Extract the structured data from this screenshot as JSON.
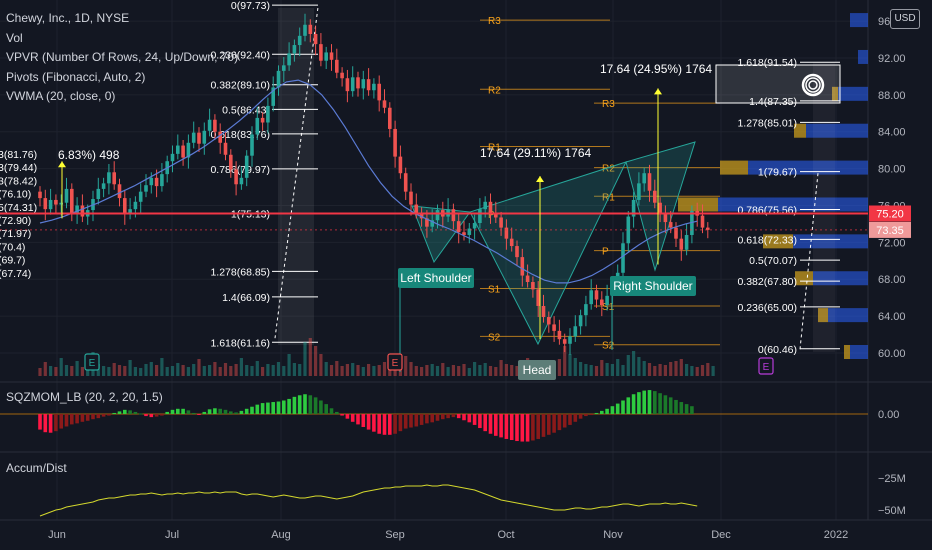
{
  "chart_data": {
    "type": "candlestick",
    "symbol": "Chewy, Inc., 1D, NYSE",
    "indicators": [
      "Vol",
      "VPVR (Number Of Rows, 24, Up/Down, 70)",
      "Pivots (Fibonacci, Auto, 2)",
      "VWMA (20, close, 0)"
    ],
    "currency_label": "USD",
    "x_ticks": [
      "Jun",
      "Jul",
      "Aug",
      "Sep",
      "Oct",
      "Nov",
      "Dec",
      "2022"
    ],
    "y_ticks": [
      "96.00",
      "92.00",
      "88.00",
      "84.00",
      "80.00",
      "76.00",
      "72.00",
      "68.00",
      "64.00",
      "60.00"
    ],
    "ylim": [
      59,
      97.5
    ],
    "last_price": "75.20",
    "second_price": "73.35",
    "price_path": [
      77.5,
      76.8,
      75.6,
      76.6,
      76.1,
      76.3,
      77.8,
      75.2,
      76.0,
      74.8,
      75.5,
      76.7,
      77.8,
      78.4,
      79.6,
      78.3,
      76.8,
      75.1,
      75.6,
      76.4,
      77.5,
      78.2,
      79.0,
      78.1,
      79.4,
      80.8,
      81.6,
      82.5,
      81.2,
      82.8,
      83.9,
      82.7,
      84.1,
      85.3,
      84.0,
      82.8,
      81.5,
      79.9,
      78.3,
      79.0,
      81.4,
      83.7,
      85.5,
      85.0,
      86.8,
      88.8,
      90.6,
      91.2,
      92.5,
      93.4,
      94.4,
      95.6,
      94.6,
      93.5,
      91.7,
      92.6,
      91.8,
      90.4,
      89.8,
      88.4,
      89.9,
      88.7,
      89.7,
      88.5,
      89.2,
      87.4,
      86.6,
      84.3,
      81.3,
      79.5,
      77.5,
      76.1,
      75.2,
      74.6,
      73.7,
      74.4,
      75.5,
      74.8,
      75.6,
      74.3,
      73.1,
      72.8,
      73.5,
      74.1,
      75.6,
      76.4,
      75.2,
      74.7,
      73.6,
      72.4,
      71.6,
      70.4,
      68.4,
      67.7,
      66.9,
      65.1,
      63.9,
      63.1,
      62.4,
      61.5,
      61.0,
      61.8,
      62.9,
      64.1,
      65.3,
      66.8,
      65.8,
      65.2,
      66.2,
      67.4,
      68.7,
      71.9,
      74.8,
      76.6,
      78.4,
      79.5,
      77.6,
      76.3,
      75.1,
      74.2,
      73.6,
      72.4,
      71.2,
      72.8,
      75.4,
      74.9,
      73.6,
      73.35
    ],
    "vwma_path": [
      74.1,
      74.4,
      74.8,
      75.3,
      75.8,
      76.3,
      76.9,
      77.5,
      78.1,
      78.8,
      79.5,
      80.2,
      80.9,
      81.6,
      82.4,
      83.3,
      84.2,
      85.2,
      86.3,
      87.5,
      88.6,
      89.4,
      89.6,
      89.1,
      88.0,
      86.4,
      84.5,
      82.4,
      80.3,
      78.5,
      77.0,
      75.9,
      75.1,
      74.5,
      73.9,
      73.4,
      72.8,
      72.2,
      71.5,
      70.8,
      70.0,
      69.2,
      68.5,
      67.9,
      67.6,
      67.6,
      67.9,
      68.4,
      69.1,
      69.9,
      70.8,
      71.7,
      72.5,
      73.1,
      73.6,
      74.0,
      74.3
    ],
    "vwma_end_day": 124,
    "volume_heights": [
      8,
      14,
      10,
      9,
      18,
      11,
      10,
      15,
      9,
      8,
      24,
      12,
      10,
      9,
      13,
      11,
      10,
      16,
      9,
      8,
      12,
      14,
      11,
      18,
      9,
      10,
      13,
      11,
      9,
      12,
      17,
      10,
      11,
      14,
      9,
      13,
      10,
      12,
      18,
      11,
      10,
      15,
      9,
      12,
      11,
      14,
      10,
      22,
      13,
      12,
      34,
      38,
      30,
      22,
      14,
      11,
      15,
      10,
      12,
      13,
      11,
      9,
      12,
      10,
      11,
      14,
      12,
      18,
      21,
      20,
      14,
      10,
      9,
      11,
      12,
      10,
      13,
      9,
      11,
      10,
      12,
      8,
      14,
      11,
      13,
      10,
      9,
      16,
      12,
      11,
      10,
      14,
      18,
      15,
      12,
      11,
      9,
      13,
      17,
      30,
      22,
      18,
      14,
      12,
      11,
      10,
      16,
      13,
      12,
      17,
      11,
      21,
      25,
      19,
      15,
      13,
      10,
      12,
      11,
      14,
      15,
      17,
      12,
      10,
      9,
      11,
      13,
      10
    ],
    "squeeze_values": [
      -3.0,
      -3.5,
      -3.6,
      -3.3,
      -2.8,
      -2.4,
      -2.0,
      -1.8,
      -1.5,
      -1.3,
      -1.0,
      -0.8,
      -0.5,
      -0.3,
      0.2,
      0.5,
      0.8,
      0.7,
      0.4,
      0.1,
      -0.4,
      -0.6,
      -0.5,
      -0.3,
      0.4,
      0.8,
      1.0,
      1.0,
      0.7,
      0.2,
      -0.1,
      0.4,
      0.9,
      1.1,
      1.0,
      0.8,
      0.5,
      0.3,
      0.6,
      1.0,
      1.4,
      1.8,
      2.1,
      2.2,
      2.3,
      2.4,
      2.6,
      2.9,
      3.3,
      3.6,
      3.8,
      3.6,
      3.2,
      2.6,
      1.9,
      1.1,
      0.4,
      -0.3,
      -0.9,
      -1.5,
      -2.0,
      -2.5,
      -3.0,
      -3.4,
      -3.8,
      -4.0,
      -4.0,
      -3.8,
      -3.3,
      -2.8,
      -2.6,
      -2.4,
      -2.1,
      -1.8,
      -1.6,
      -1.3,
      -1.0,
      -0.8,
      -0.6,
      -0.8,
      -1.2,
      -1.6,
      -2.1,
      -2.7,
      -3.3,
      -3.8,
      -4.2,
      -4.5,
      -4.8,
      -5.0,
      -5.2,
      -5.3,
      -5.3,
      -5.1,
      -4.8,
      -4.4,
      -4.0,
      -3.6,
      -3.1,
      -2.6,
      -2.1,
      -1.5,
      -0.9,
      -0.4,
      -0.2,
      0.2,
      0.6,
      1.0,
      1.5,
      2.0,
      2.6,
      3.2,
      3.8,
      4.2,
      4.5,
      4.6,
      4.4,
      4.0,
      3.6,
      3.2,
      2.7,
      2.3,
      1.9,
      1.5
    ],
    "squeeze_zero_label": "0.00",
    "ad_values": [
      64,
      62,
      60,
      58,
      57,
      55,
      54,
      53,
      52,
      51,
      50,
      48,
      47,
      46,
      46,
      45,
      44,
      43,
      43,
      42,
      42,
      41,
      42,
      43,
      42,
      42,
      41,
      42,
      41,
      41,
      40,
      41,
      41,
      40,
      41,
      40,
      40,
      40,
      42,
      43,
      42,
      42,
      43,
      44,
      45,
      44,
      43,
      44,
      45,
      46,
      46,
      45,
      44,
      44,
      45,
      46,
      47,
      46,
      45,
      44,
      42,
      40,
      39,
      38,
      37,
      36,
      36,
      35,
      35,
      34,
      34,
      34,
      34,
      33,
      34,
      34,
      33,
      33,
      34,
      35,
      36,
      37,
      38,
      40,
      42,
      44,
      46,
      48,
      49,
      50,
      51,
      52,
      53,
      54,
      55,
      56,
      57,
      58,
      58,
      58,
      57,
      56,
      56,
      57,
      57,
      56,
      55,
      55,
      54,
      53,
      52,
      52,
      53,
      54,
      53,
      52,
      52,
      52,
      51,
      52,
      52,
      51,
      52,
      53,
      54
    ],
    "ad_ticks": [
      "−25M",
      "−50M"
    ],
    "fib_left": [
      {
        "label": "0(97.73)",
        "value": 97.73
      },
      {
        "label": "0.236(92.40)",
        "value": 92.4
      },
      {
        "label": "0.382(89.10)",
        "value": 89.1
      },
      {
        "label": "0.5(86.43)",
        "value": 86.43
      },
      {
        "label": "0.618(83.76)",
        "value": 83.76
      },
      {
        "label": "0.786(79.97)",
        "value": 79.97
      },
      {
        "label": "1(75.13)",
        "value": 75.13
      },
      {
        "label": "1.278(68.85)",
        "value": 68.85
      },
      {
        "label": "1.4(66.09)",
        "value": 66.09
      },
      {
        "label": "1.618(61.16)",
        "value": 61.16
      }
    ],
    "fib_right": [
      {
        "label": "1.618(91.54)",
        "value": 91.54
      },
      {
        "label": "1.4(87.35)",
        "value": 87.35
      },
      {
        "label": "1.278(85.01)",
        "value": 85.01
      },
      {
        "label": "1(79.67)",
        "value": 79.67
      },
      {
        "label": "0.786(75.56)",
        "value": 75.56
      },
      {
        "label": "0.618(72.33)",
        "value": 72.33
      },
      {
        "label": "0.5(70.07)",
        "value": 70.07
      },
      {
        "label": "0.382(67.80)",
        "value": 67.8
      },
      {
        "label": "0.236(65.00)",
        "value": 65.0
      },
      {
        "label": "0(60.46)",
        "value": 60.46
      }
    ],
    "left_edge_labels": [
      "3(81.76)",
      "3(79.44)",
      "3(78.42)",
      "(76.10)",
      "5(74.31)",
      "(72.90)",
      "(71.97)",
      "(70.4)",
      "(69.7)",
      "(67.74)"
    ],
    "pivots": [
      {
        "label": "R3",
        "value": 96.1
      },
      {
        "label": "R2",
        "value": 88.6
      },
      {
        "label": "R3",
        "value": 87.1
      },
      {
        "label": "R1",
        "value": 82.4
      },
      {
        "label": "R2",
        "value": 80.1
      },
      {
        "label": "R1",
        "value": 77.0
      },
      {
        "label": "P",
        "value": 75.1
      },
      {
        "label": "P",
        "value": 71.1
      },
      {
        "label": "S1",
        "value": 67.0
      },
      {
        "label": "S1",
        "value": 65.1
      },
      {
        "label": "S2",
        "value": 61.8
      },
      {
        "label": "S2",
        "value": 60.9
      }
    ],
    "measures": [
      {
        "label": "6.83%) 498",
        "value": 81.5
      },
      {
        "label": "17.64 (29.11%) 1764",
        "value": 81.7
      },
      {
        "label": "17.64 (24.95%) 1764",
        "value": 90.8
      }
    ],
    "pattern_labels": [
      "Left Shoulder",
      "Head",
      "Right Shoulder"
    ],
    "earnings_badge": "E",
    "horizontal_line_value": 75.13
  }
}
